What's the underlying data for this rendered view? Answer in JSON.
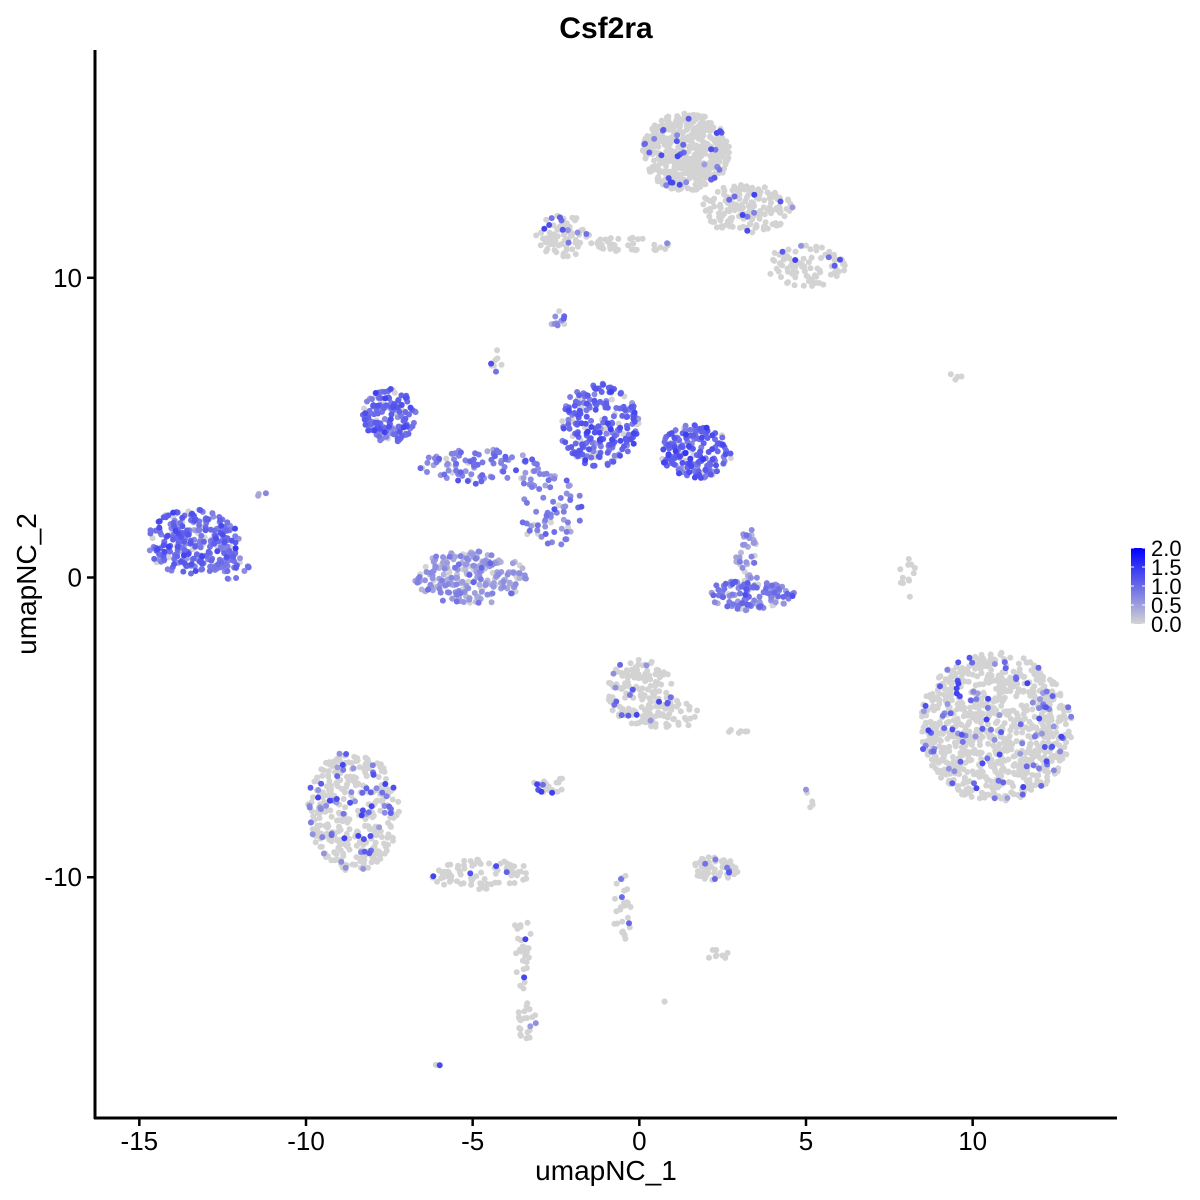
{
  "chart_data": {
    "type": "scatter",
    "title": "Csf2ra",
    "xlabel": "umapNC_1",
    "ylabel": "umapNC_2",
    "xlim": [
      -16.3,
      14.3
    ],
    "ylim": [
      -18.0,
      17.6
    ],
    "x_ticks": [
      -15,
      -10,
      -5,
      0,
      5,
      10
    ],
    "x_tick_labels": [
      "-15",
      "-10",
      "-5",
      "0",
      "5",
      "10"
    ],
    "y_ticks": [
      -10,
      0,
      10
    ],
    "y_tick_labels": [
      "-10",
      "0",
      "10"
    ],
    "grid": false,
    "color_scale": {
      "low": "#d3d3d3",
      "high": "#0000ff",
      "min": 0.0,
      "max": 2.0,
      "tick_values": [
        0.0,
        0.5,
        1.0,
        1.5,
        2.0
      ],
      "tick_labels": [
        "0.0",
        "0.5",
        "1.0",
        "1.5",
        "2.0"
      ],
      "placement": "right"
    },
    "clusters": [
      {
        "cx": 1.4,
        "cy": 14.2,
        "rx": 1.3,
        "ry": 1.3,
        "n": 500,
        "expr": 0.03
      },
      {
        "cx": 3.2,
        "cy": 12.3,
        "rx": 1.4,
        "ry": 0.8,
        "n": 170,
        "expr": 0.05
      },
      {
        "cx": 5.0,
        "cy": 10.4,
        "rx": 1.2,
        "ry": 0.7,
        "n": 90,
        "expr": 0.06
      },
      {
        "cx": -2.3,
        "cy": 11.4,
        "rx": 0.8,
        "ry": 0.7,
        "n": 80,
        "expr": 0.05
      },
      {
        "cx": -0.3,
        "cy": 11.1,
        "rx": 1.3,
        "ry": 0.25,
        "n": 40,
        "expr": 0.02
      },
      {
        "cx": -7.5,
        "cy": 5.4,
        "rx": 0.8,
        "ry": 0.9,
        "n": 160,
        "expr": 0.95
      },
      {
        "cx": -4.8,
        "cy": 3.7,
        "rx": 1.8,
        "ry": 0.6,
        "n": 90,
        "expr": 0.8
      },
      {
        "cx": -1.2,
        "cy": 5.1,
        "rx": 1.2,
        "ry": 1.4,
        "n": 230,
        "expr": 1.0
      },
      {
        "cx": 1.7,
        "cy": 4.2,
        "rx": 1.1,
        "ry": 0.9,
        "n": 170,
        "expr": 1.05
      },
      {
        "cx": -2.7,
        "cy": 2.3,
        "rx": 1.0,
        "ry": 1.3,
        "n": 70,
        "expr": 0.7
      },
      {
        "cx": -5.1,
        "cy": 0.0,
        "rx": 1.7,
        "ry": 0.9,
        "n": 230,
        "expr": 0.55
      },
      {
        "cx": 3.3,
        "cy": -0.6,
        "rx": 1.4,
        "ry": 0.5,
        "n": 120,
        "expr": 0.8
      },
      {
        "cx": 3.3,
        "cy": 0.7,
        "rx": 0.4,
        "ry": 0.9,
        "n": 35,
        "expr": 0.6
      },
      {
        "cx": -13.4,
        "cy": 1.2,
        "rx": 1.4,
        "ry": 1.1,
        "n": 280,
        "expr": 0.95
      },
      {
        "cx": -12.2,
        "cy": 0.4,
        "rx": 0.5,
        "ry": 0.5,
        "n": 25,
        "expr": 0.85
      },
      {
        "cx": 10.7,
        "cy": -5.0,
        "rx": 2.3,
        "ry": 2.5,
        "n": 950,
        "expr": 0.06
      },
      {
        "cx": 0.0,
        "cy": -3.8,
        "rx": 1.0,
        "ry": 1.1,
        "n": 140,
        "expr": 0.06
      },
      {
        "cx": 0.9,
        "cy": -4.6,
        "rx": 0.9,
        "ry": 0.5,
        "n": 50,
        "expr": 0.04
      },
      {
        "cx": -8.6,
        "cy": -7.8,
        "rx": 1.4,
        "ry": 2.0,
        "n": 380,
        "expr": 0.1
      },
      {
        "cx": -4.8,
        "cy": -9.9,
        "rx": 1.6,
        "ry": 0.5,
        "n": 80,
        "expr": 0.07
      },
      {
        "cx": -3.5,
        "cy": -12.5,
        "rx": 0.3,
        "ry": 1.4,
        "n": 30,
        "expr": 0.06
      },
      {
        "cx": -3.4,
        "cy": -14.8,
        "rx": 0.3,
        "ry": 0.6,
        "n": 22,
        "expr": 0.15
      },
      {
        "cx": 2.3,
        "cy": -9.7,
        "rx": 0.7,
        "ry": 0.4,
        "n": 60,
        "expr": 0.06
      },
      {
        "cx": -2.7,
        "cy": -6.9,
        "rx": 0.5,
        "ry": 0.3,
        "n": 22,
        "expr": 0.05
      },
      {
        "cx": -0.5,
        "cy": -11.0,
        "rx": 0.3,
        "ry": 1.2,
        "n": 28,
        "expr": 0.02
      },
      {
        "cx": 8.0,
        "cy": 0.0,
        "rx": 0.3,
        "ry": 0.7,
        "n": 12,
        "expr": 0.0
      },
      {
        "cx": -2.4,
        "cy": 8.6,
        "rx": 0.2,
        "ry": 0.3,
        "n": 6,
        "expr": 0.5
      },
      {
        "cx": -4.3,
        "cy": 7.2,
        "rx": 0.2,
        "ry": 0.4,
        "n": 8,
        "expr": 0.3
      },
      {
        "cx": 2.3,
        "cy": -12.6,
        "rx": 0.4,
        "ry": 0.2,
        "n": 8,
        "expr": 0.1
      },
      {
        "cx": 9.5,
        "cy": 6.7,
        "rx": 0.3,
        "ry": 0.1,
        "n": 4,
        "expr": 0.0
      },
      {
        "cx": 5.1,
        "cy": -7.3,
        "rx": 0.2,
        "ry": 0.5,
        "n": 5,
        "expr": 0.1
      },
      {
        "cx": 3.0,
        "cy": -5.1,
        "rx": 0.4,
        "ry": 0.1,
        "n": 6,
        "expr": 0.0
      },
      {
        "cx": -6.0,
        "cy": -16.3,
        "rx": 0.2,
        "ry": 0.1,
        "n": 3,
        "expr": 0.2
      },
      {
        "cx": 0.7,
        "cy": -14.2,
        "rx": 0.1,
        "ry": 0.1,
        "n": 2,
        "expr": 0.0
      },
      {
        "cx": -11.4,
        "cy": 2.8,
        "rx": 0.2,
        "ry": 0.1,
        "n": 3,
        "expr": 0.6
      },
      {
        "cx": -2.6,
        "cy": 8.4,
        "rx": 0.15,
        "ry": 0.15,
        "n": 4,
        "expr": 0.7
      }
    ]
  }
}
